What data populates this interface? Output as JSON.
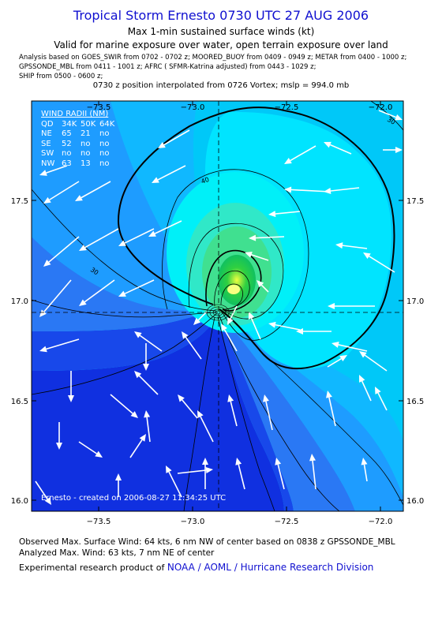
{
  "title": "Tropical Storm Ernesto 0730 UTC 27 AUG 2006",
  "subtitle": "Max 1-min sustained surface winds (kt)",
  "valid_note": "Valid for marine exposure over water, open terrain exposure over land",
  "analysis_lines": [
    "Analysis based on  GOES_SWIR from 0702 - 0702 z;  MOORED_BUOY from 0409 - 0949 z;  METAR from 0400 - 1000 z;",
    "GPSSONDE_MBL from 0411 - 1001 z;  AFRC ( SFMR-Katrina adjusted) from 0443 - 1029 z;",
    "SHIP from 0500 - 0600 z;"
  ],
  "position_note": "0730 z position interpolated from 0726 Vortex; mslp = 994.0 mb",
  "map": {
    "lon_ticks": [
      "−73.5",
      "−73.0",
      "−72.5",
      "−72.0"
    ],
    "lat_ticks": [
      "17.5",
      "17.0",
      "16.5",
      "16.0"
    ],
    "contour_labels": [
      "30",
      "40",
      "30"
    ],
    "colors": {
      "deep": "#1030e0",
      "mid": "#2090ff",
      "light": "#00c8ff",
      "cyan": "#00e8ff",
      "green": "#40e090",
      "core": "#20d020"
    }
  },
  "wind_radii": {
    "title": "WIND RADII (NM)",
    "header": [
      "QD",
      "34K",
      "50K",
      "64K"
    ],
    "rows": [
      [
        "NE",
        "65",
        "21",
        "no"
      ],
      [
        "SE",
        "52",
        "no",
        "no"
      ],
      [
        "SW",
        "no",
        "no",
        "no"
      ],
      [
        "NW",
        "63",
        "13",
        "no"
      ]
    ]
  },
  "credit": "Ernesto - created on 2006-08-27 11:34:25 UTC",
  "observed_max": "Observed Max. Surface Wind: 64 kts, 6 nm NW of center based on 0838 z GPSSONDE_MBL",
  "analyzed_max": "Analyzed Max. Wind: 63 kts, 7 nm NE of center",
  "experimental_prefix": "Experimental research product of ",
  "organization": "NOAA / AOML / Hurricane Research Division"
}
